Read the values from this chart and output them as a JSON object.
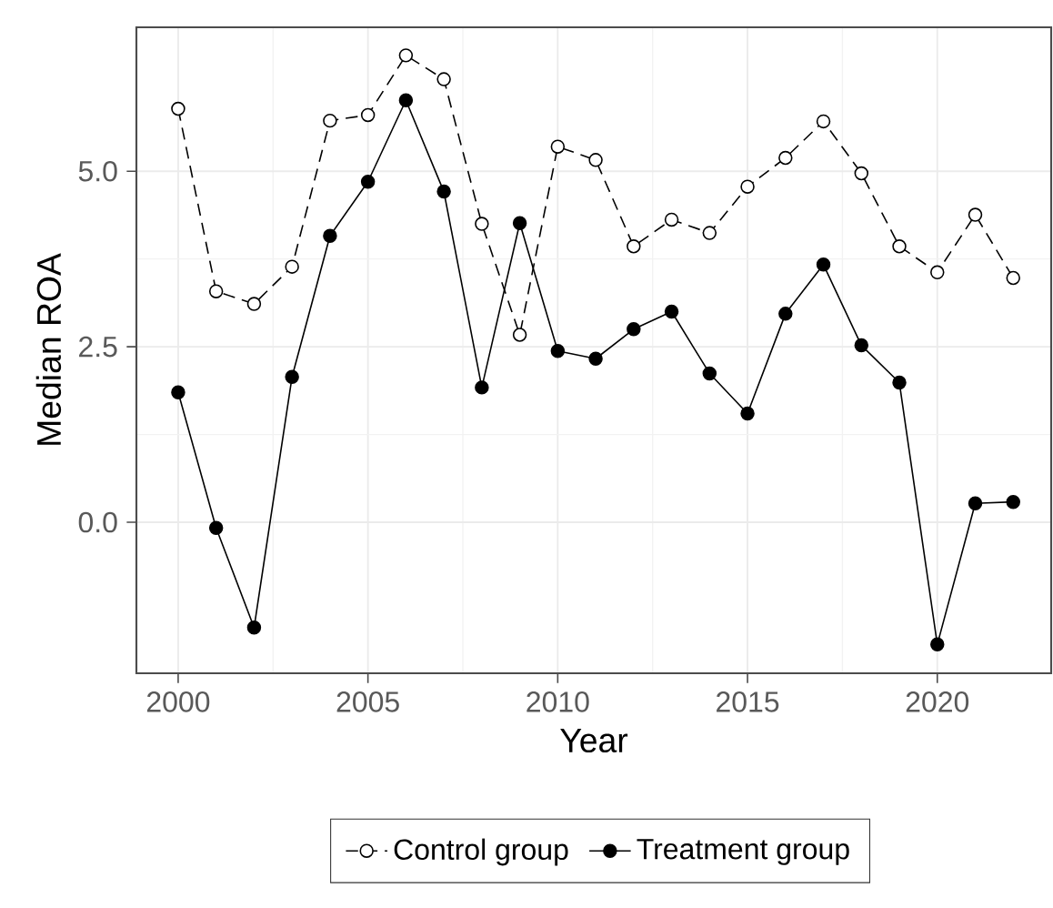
{
  "chart_data": {
    "type": "line",
    "xlabel": "Year",
    "ylabel": "Median ROA",
    "x": [
      2000,
      2001,
      2002,
      2003,
      2004,
      2005,
      2006,
      2007,
      2008,
      2009,
      2010,
      2011,
      2012,
      2013,
      2014,
      2015,
      2016,
      2017,
      2018,
      2019,
      2020,
      2021,
      2022
    ],
    "series": [
      {
        "name": "Control group",
        "color": "#000000",
        "line_style": "dashed",
        "marker": "circle",
        "values": [
          5.89,
          3.29,
          3.11,
          3.64,
          5.72,
          5.8,
          6.65,
          6.31,
          4.25,
          2.67,
          5.35,
          5.16,
          3.93,
          4.31,
          4.12,
          4.78,
          5.19,
          5.71,
          4.97,
          3.93,
          3.56,
          4.38,
          3.48
        ]
      },
      {
        "name": "Treatment group",
        "color": "#000000",
        "line_style": "solid",
        "marker": "circle",
        "values": [
          1.85,
          -0.08,
          -1.5,
          2.07,
          4.08,
          4.85,
          6.01,
          4.71,
          1.92,
          4.26,
          2.44,
          2.33,
          2.75,
          3.0,
          2.12,
          1.55,
          2.97,
          3.67,
          2.52,
          1.99,
          -1.74,
          0.27,
          0.29
        ]
      }
    ],
    "xlim": [
      1998.9,
      2023.0
    ],
    "ylim": [
      -2.15,
      7.05
    ],
    "xticks": [
      2000,
      2005,
      2010,
      2015,
      2020
    ],
    "yticks": [
      {
        "value": 0,
        "label": "0.0"
      },
      {
        "value": 2.5,
        "label": "2.5"
      },
      {
        "value": 5,
        "label": "5.0"
      }
    ],
    "grid": true,
    "legend": "bottom"
  }
}
